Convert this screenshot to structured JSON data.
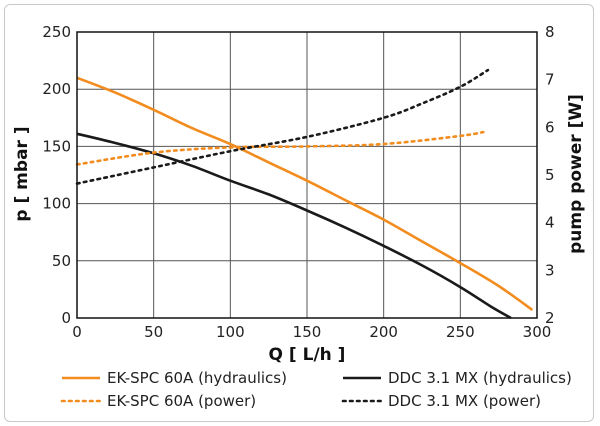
{
  "chart_data": {
    "type": "line",
    "xlabel": "Q [ L/h ]",
    "ylabel": "p [ mbar ]",
    "y2label": "pump power [W]",
    "xlim": [
      0,
      300
    ],
    "ylim": [
      0,
      250
    ],
    "y2lim": [
      2,
      8
    ],
    "xticks": [
      "0",
      "50",
      "100",
      "150",
      "200",
      "250",
      "300"
    ],
    "yticks": [
      "0",
      "50",
      "100",
      "150",
      "200",
      "250"
    ],
    "y2ticks": [
      "2",
      "3",
      "4",
      "5",
      "6",
      "7",
      "8"
    ],
    "grid": true,
    "legend_position": "bottom",
    "series": [
      {
        "name": "EK-SPC 60A (hydraulics)",
        "axis": "left",
        "color": "#f28c1e",
        "style": "solid",
        "x": [
          0,
          25,
          50,
          75,
          100,
          125,
          150,
          175,
          200,
          225,
          250,
          275,
          297
        ],
        "y": [
          210,
          197,
          182,
          166,
          152,
          136,
          120,
          103,
          86,
          67,
          48,
          28,
          7
        ]
      },
      {
        "name": "DDC 3.1 MX (hydraulics)",
        "axis": "left",
        "color": "#1a1a1a",
        "style": "solid",
        "x": [
          0,
          25,
          50,
          75,
          100,
          125,
          150,
          175,
          200,
          225,
          250,
          270,
          283
        ],
        "y": [
          161,
          153,
          144,
          133,
          120,
          108,
          94,
          79,
          63,
          46,
          27,
          10,
          0
        ]
      },
      {
        "name": "EK-SPC 60A (power)",
        "axis": "right",
        "color": "#f28c1e",
        "style": "dotted",
        "x": [
          0,
          50,
          100,
          150,
          200,
          250,
          265
        ],
        "y": [
          5.22,
          5.47,
          5.58,
          5.6,
          5.65,
          5.82,
          5.9
        ]
      },
      {
        "name": "DDC 3.1 MX (power)",
        "axis": "right",
        "color": "#1a1a1a",
        "style": "dotted",
        "x": [
          0,
          50,
          100,
          150,
          200,
          225,
          250,
          268
        ],
        "y": [
          4.82,
          5.16,
          5.5,
          5.8,
          6.2,
          6.5,
          6.85,
          7.2
        ]
      }
    ]
  }
}
